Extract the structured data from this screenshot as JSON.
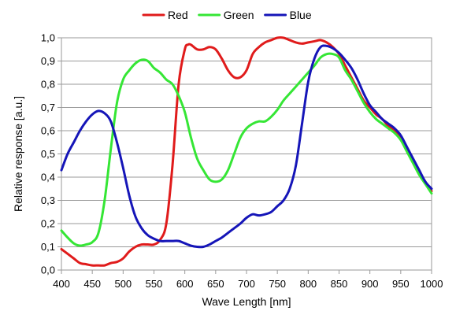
{
  "chart_data": {
    "type": "line",
    "xlabel": "Wave Length [nm]",
    "ylabel": "Relative response [a.u.]",
    "xlim": [
      400,
      1000
    ],
    "ylim": [
      0,
      1
    ],
    "x_ticks": [
      "400",
      "450",
      "500",
      "550",
      "600",
      "650",
      "700",
      "750",
      "800",
      "850",
      "900",
      "950",
      "1000"
    ],
    "y_ticks": [
      "0,0",
      "0,1",
      "0,2",
      "0,3",
      "0,4",
      "0,5",
      "0,6",
      "0,7",
      "0,8",
      "0,9",
      "1,0"
    ],
    "grid": "horizontal",
    "legend_position": "top",
    "series": [
      {
        "name": "Red",
        "color": "#e01b1b",
        "points": [
          [
            400,
            0.09
          ],
          [
            410,
            0.07
          ],
          [
            420,
            0.05
          ],
          [
            430,
            0.03
          ],
          [
            440,
            0.025
          ],
          [
            450,
            0.02
          ],
          [
            460,
            0.02
          ],
          [
            470,
            0.02
          ],
          [
            480,
            0.03
          ],
          [
            490,
            0.035
          ],
          [
            500,
            0.05
          ],
          [
            510,
            0.08
          ],
          [
            520,
            0.1
          ],
          [
            530,
            0.11
          ],
          [
            540,
            0.11
          ],
          [
            550,
            0.11
          ],
          [
            560,
            0.13
          ],
          [
            570,
            0.2
          ],
          [
            580,
            0.45
          ],
          [
            590,
            0.8
          ],
          [
            600,
            0.95
          ],
          [
            605,
            0.97
          ],
          [
            610,
            0.97
          ],
          [
            620,
            0.95
          ],
          [
            630,
            0.95
          ],
          [
            640,
            0.96
          ],
          [
            650,
            0.95
          ],
          [
            660,
            0.91
          ],
          [
            670,
            0.86
          ],
          [
            680,
            0.83
          ],
          [
            690,
            0.83
          ],
          [
            700,
            0.86
          ],
          [
            710,
            0.93
          ],
          [
            720,
            0.96
          ],
          [
            730,
            0.98
          ],
          [
            740,
            0.99
          ],
          [
            750,
            1.0
          ],
          [
            760,
            1.0
          ],
          [
            770,
            0.99
          ],
          [
            780,
            0.98
          ],
          [
            790,
            0.975
          ],
          [
            800,
            0.98
          ],
          [
            810,
            0.985
          ],
          [
            820,
            0.99
          ],
          [
            830,
            0.98
          ],
          [
            840,
            0.96
          ],
          [
            850,
            0.93
          ],
          [
            860,
            0.88
          ],
          [
            870,
            0.83
          ],
          [
            880,
            0.78
          ],
          [
            890,
            0.73
          ],
          [
            900,
            0.7
          ],
          [
            910,
            0.67
          ],
          [
            920,
            0.65
          ],
          [
            930,
            0.62
          ],
          [
            940,
            0.6
          ],
          [
            950,
            0.57
          ],
          [
            960,
            0.52
          ],
          [
            970,
            0.47
          ],
          [
            980,
            0.42
          ],
          [
            990,
            0.38
          ],
          [
            1000,
            0.34
          ]
        ]
      },
      {
        "name": "Green",
        "color": "#35e635",
        "points": [
          [
            400,
            0.17
          ],
          [
            410,
            0.14
          ],
          [
            420,
            0.115
          ],
          [
            430,
            0.105
          ],
          [
            440,
            0.11
          ],
          [
            450,
            0.12
          ],
          [
            460,
            0.16
          ],
          [
            470,
            0.3
          ],
          [
            480,
            0.52
          ],
          [
            490,
            0.72
          ],
          [
            500,
            0.82
          ],
          [
            510,
            0.86
          ],
          [
            520,
            0.89
          ],
          [
            530,
            0.905
          ],
          [
            540,
            0.9
          ],
          [
            550,
            0.87
          ],
          [
            560,
            0.85
          ],
          [
            570,
            0.82
          ],
          [
            580,
            0.8
          ],
          [
            590,
            0.75
          ],
          [
            600,
            0.68
          ],
          [
            610,
            0.57
          ],
          [
            620,
            0.48
          ],
          [
            630,
            0.43
          ],
          [
            640,
            0.39
          ],
          [
            650,
            0.38
          ],
          [
            660,
            0.39
          ],
          [
            670,
            0.43
          ],
          [
            680,
            0.5
          ],
          [
            690,
            0.57
          ],
          [
            700,
            0.61
          ],
          [
            710,
            0.63
          ],
          [
            720,
            0.64
          ],
          [
            730,
            0.64
          ],
          [
            740,
            0.66
          ],
          [
            750,
            0.69
          ],
          [
            760,
            0.73
          ],
          [
            770,
            0.76
          ],
          [
            780,
            0.79
          ],
          [
            790,
            0.82
          ],
          [
            800,
            0.85
          ],
          [
            810,
            0.88
          ],
          [
            820,
            0.915
          ],
          [
            830,
            0.93
          ],
          [
            840,
            0.93
          ],
          [
            850,
            0.915
          ],
          [
            860,
            0.86
          ],
          [
            870,
            0.82
          ],
          [
            880,
            0.77
          ],
          [
            890,
            0.72
          ],
          [
            900,
            0.68
          ],
          [
            910,
            0.65
          ],
          [
            920,
            0.63
          ],
          [
            930,
            0.61
          ],
          [
            940,
            0.59
          ],
          [
            950,
            0.56
          ],
          [
            960,
            0.51
          ],
          [
            970,
            0.46
          ],
          [
            980,
            0.41
          ],
          [
            990,
            0.37
          ],
          [
            1000,
            0.33
          ]
        ]
      },
      {
        "name": "Blue",
        "color": "#1515b8",
        "points": [
          [
            400,
            0.43
          ],
          [
            410,
            0.5
          ],
          [
            420,
            0.55
          ],
          [
            430,
            0.6
          ],
          [
            440,
            0.64
          ],
          [
            450,
            0.67
          ],
          [
            460,
            0.685
          ],
          [
            470,
            0.675
          ],
          [
            480,
            0.64
          ],
          [
            490,
            0.55
          ],
          [
            500,
            0.44
          ],
          [
            510,
            0.32
          ],
          [
            520,
            0.23
          ],
          [
            530,
            0.18
          ],
          [
            540,
            0.15
          ],
          [
            550,
            0.135
          ],
          [
            560,
            0.125
          ],
          [
            570,
            0.125
          ],
          [
            580,
            0.125
          ],
          [
            590,
            0.125
          ],
          [
            600,
            0.115
          ],
          [
            610,
            0.105
          ],
          [
            620,
            0.1
          ],
          [
            630,
            0.1
          ],
          [
            640,
            0.11
          ],
          [
            650,
            0.125
          ],
          [
            660,
            0.14
          ],
          [
            670,
            0.16
          ],
          [
            680,
            0.18
          ],
          [
            690,
            0.2
          ],
          [
            700,
            0.225
          ],
          [
            710,
            0.24
          ],
          [
            720,
            0.235
          ],
          [
            730,
            0.24
          ],
          [
            740,
            0.25
          ],
          [
            750,
            0.275
          ],
          [
            760,
            0.3
          ],
          [
            770,
            0.35
          ],
          [
            780,
            0.45
          ],
          [
            790,
            0.63
          ],
          [
            800,
            0.81
          ],
          [
            810,
            0.91
          ],
          [
            820,
            0.96
          ],
          [
            830,
            0.965
          ],
          [
            840,
            0.955
          ],
          [
            850,
            0.935
          ],
          [
            860,
            0.905
          ],
          [
            870,
            0.87
          ],
          [
            880,
            0.82
          ],
          [
            890,
            0.76
          ],
          [
            900,
            0.71
          ],
          [
            910,
            0.68
          ],
          [
            920,
            0.65
          ],
          [
            930,
            0.63
          ],
          [
            940,
            0.61
          ],
          [
            950,
            0.58
          ],
          [
            960,
            0.53
          ],
          [
            970,
            0.48
          ],
          [
            980,
            0.43
          ],
          [
            990,
            0.38
          ],
          [
            1000,
            0.35
          ]
        ]
      }
    ]
  }
}
